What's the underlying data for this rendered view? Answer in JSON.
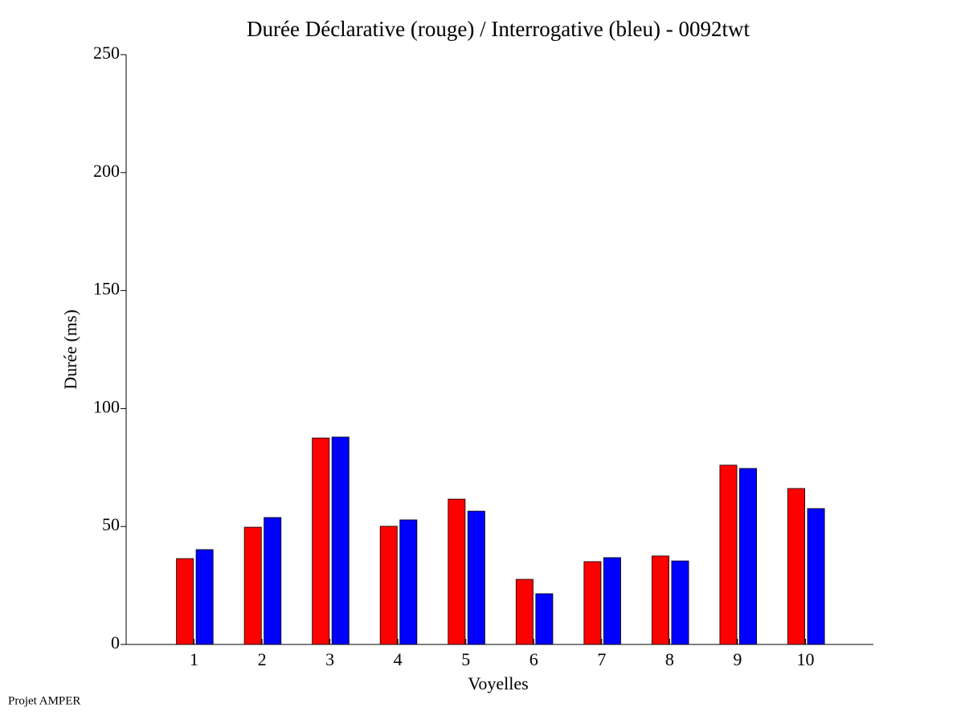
{
  "chart_data": {
    "type": "bar",
    "title": "Durée Déclarative (rouge) / Interrogative (bleu) - 0092twt",
    "x_label": "Voyelles",
    "y_label": "Durée (ms)",
    "footer": "Projet AMPER",
    "x": [
      1,
      2,
      3,
      4,
      5,
      6,
      7,
      8,
      9,
      10
    ],
    "series": [
      {
        "color": "#ff0000",
        "values": [
          36.4,
          49.7,
          87.5,
          50.1,
          61.6,
          27.6,
          35.1,
          37.5,
          76.0,
          66.1
        ]
      },
      {
        "color": "#0000ff",
        "values": [
          40.2,
          53.8,
          87.9,
          52.8,
          56.5,
          21.5,
          36.8,
          35.4,
          74.6,
          57.6
        ]
      }
    ],
    "xlim": [
      0,
      11
    ],
    "xticks": [
      1,
      2,
      3,
      4,
      5,
      6,
      7,
      8,
      9,
      10
    ],
    "ylim": [
      0,
      250
    ],
    "yticks": [
      0,
      50,
      100,
      150,
      200,
      250
    ]
  }
}
